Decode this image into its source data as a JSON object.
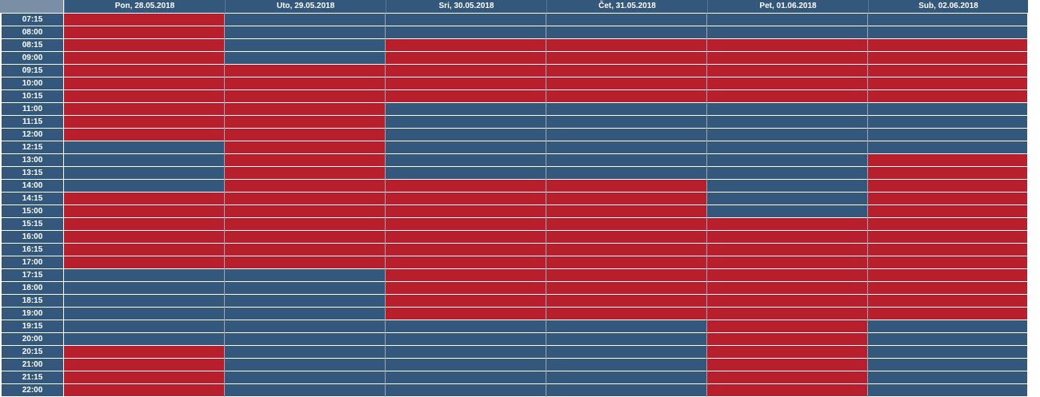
{
  "schedule": {
    "days": [
      "Pon, 28.05.2018",
      "Uto, 29.05.2018",
      "Sri, 30.05.2018",
      "Čet, 31.05.2018",
      "Pet, 01.06.2018",
      "Sub, 02.06.2018"
    ],
    "times": [
      "07:15",
      "08:00",
      "08:15",
      "09:00",
      "09:15",
      "10:00",
      "10:15",
      "11:00",
      "11:15",
      "12:00",
      "12:15",
      "13:00",
      "13:15",
      "14:00",
      "14:15",
      "15:00",
      "15:15",
      "16:00",
      "16:15",
      "17:00",
      "17:15",
      "18:00",
      "18:15",
      "19:00",
      "19:15",
      "20:00",
      "20:15",
      "21:00",
      "21:15",
      "22:00"
    ],
    "status_colors": {
      "busy": "#b71f2c",
      "free": "#34577c"
    },
    "busy": [
      [
        1,
        1,
        1,
        1,
        1,
        1,
        1,
        1,
        1,
        1,
        0,
        0,
        0,
        0,
        1,
        1,
        1,
        1,
        1,
        1,
        0,
        0,
        0,
        0,
        0,
        0,
        1,
        1,
        1,
        1
      ],
      [
        0,
        0,
        0,
        0,
        1,
        1,
        1,
        1,
        1,
        1,
        1,
        1,
        1,
        1,
        1,
        1,
        1,
        1,
        1,
        1,
        0,
        0,
        0,
        0,
        0,
        0,
        0,
        0,
        0,
        0
      ],
      [
        0,
        0,
        1,
        1,
        1,
        1,
        1,
        0,
        0,
        0,
        0,
        0,
        0,
        1,
        1,
        1,
        1,
        1,
        1,
        1,
        1,
        1,
        1,
        1,
        0,
        0,
        0,
        0,
        0,
        0
      ],
      [
        0,
        0,
        1,
        1,
        1,
        1,
        1,
        0,
        0,
        0,
        0,
        0,
        0,
        1,
        1,
        1,
        1,
        1,
        1,
        1,
        1,
        1,
        1,
        1,
        0,
        0,
        0,
        0,
        0,
        0
      ],
      [
        0,
        0,
        1,
        1,
        1,
        1,
        1,
        0,
        0,
        0,
        0,
        0,
        0,
        0,
        0,
        0,
        1,
        1,
        1,
        1,
        1,
        1,
        1,
        1,
        1,
        1,
        1,
        1,
        1,
        1
      ],
      [
        0,
        0,
        1,
        1,
        1,
        1,
        1,
        0,
        0,
        0,
        0,
        1,
        1,
        1,
        1,
        1,
        1,
        1,
        1,
        1,
        1,
        1,
        1,
        1,
        0,
        0,
        0,
        0,
        0,
        0
      ]
    ]
  }
}
